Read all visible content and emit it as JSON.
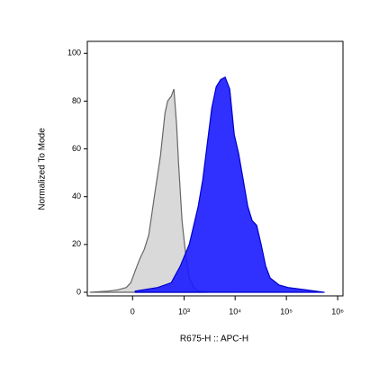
{
  "chart_data": {
    "type": "histogram-overlay",
    "xlabel": "R675-H :: APC-H",
    "ylabel": "Normalized To Mode",
    "xscale": "biexponential",
    "xlim": [
      -750,
      1270000
    ],
    "xticks": [
      0,
      {
        "value": 1000,
        "label": "10³"
      },
      {
        "value": 10000,
        "label": "10⁴"
      },
      {
        "value": 100000,
        "label": "10⁵"
      },
      {
        "value": 1000000,
        "label": "10⁶"
      }
    ],
    "ylim": [
      -1.5,
      105
    ],
    "yticks": [
      0,
      20,
      40,
      60,
      80,
      100
    ],
    "series": [
      {
        "color": "#d9d9d9",
        "line_color": "#666666",
        "x": [
          -654,
          -264,
          -148,
          -57,
          -16,
          24,
          66,
          110,
          159,
          238,
          321,
          405,
          462,
          550,
          626,
          710,
          772,
          912,
          1074,
          1266,
          1552,
          1906,
          2860
        ],
        "values": [
          0,
          0.5,
          1,
          2,
          4,
          9,
          14,
          18,
          24,
          42,
          57,
          75,
          80,
          82,
          85,
          70,
          55,
          30,
          16,
          6,
          2,
          0.5,
          0
        ]
      },
      {
        "color": "#1a1aff",
        "line_color": "#0000cc",
        "x": [
          24,
          277,
          550,
          840,
          1266,
          1906,
          2330,
          2860,
          3500,
          4280,
          5240,
          6400,
          7850,
          9600,
          11700,
          14400,
          17600,
          21500,
          26300,
          32200,
          39400,
          48200,
          72400,
          108000,
          243000,
          543000
        ],
        "values": [
          0.5,
          2,
          4,
          11,
          20,
          36,
          47,
          62,
          77,
          86,
          89,
          90,
          85,
          66,
          58,
          47,
          36,
          30,
          28,
          20,
          11,
          6,
          3,
          2,
          1,
          0
        ]
      }
    ]
  }
}
